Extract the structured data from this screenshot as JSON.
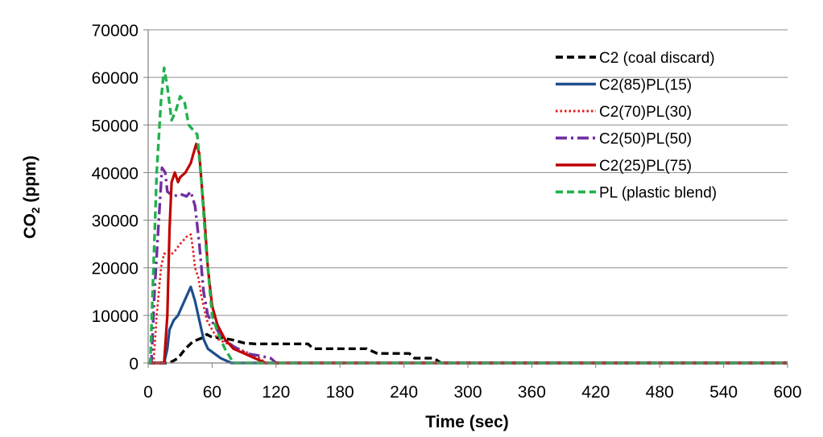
{
  "chart_data": {
    "type": "line",
    "title": "",
    "xlabel": "Time (sec)",
    "ylabel_main": "CO",
    "ylabel_sub": "2",
    "ylabel_unit": " (ppm)",
    "xlim": [
      0,
      600
    ],
    "ylim": [
      0,
      70000
    ],
    "x_ticks": [
      "0",
      "60",
      "120",
      "180",
      "240",
      "300",
      "360",
      "420",
      "480",
      "540",
      "600"
    ],
    "y_ticks": [
      "0",
      "10000",
      "20000",
      "30000",
      "40000",
      "50000",
      "60000",
      "70000"
    ],
    "grid": "horizontal",
    "legend_position": "top-right",
    "series": [
      {
        "name": "C2  (coal discard)",
        "color": "#000000",
        "dash": "dashed",
        "points": [
          [
            0,
            0
          ],
          [
            20,
            0
          ],
          [
            28,
            1000
          ],
          [
            35,
            3000
          ],
          [
            42,
            4500
          ],
          [
            50,
            5200
          ],
          [
            55,
            6000
          ],
          [
            60,
            5400
          ],
          [
            70,
            5200
          ],
          [
            80,
            4800
          ],
          [
            90,
            4200
          ],
          [
            100,
            4000
          ],
          [
            115,
            4000
          ],
          [
            130,
            4000
          ],
          [
            150,
            4000
          ],
          [
            155,
            3000
          ],
          [
            180,
            3000
          ],
          [
            205,
            3000
          ],
          [
            215,
            2000
          ],
          [
            230,
            2000
          ],
          [
            245,
            2000
          ],
          [
            250,
            1000
          ],
          [
            268,
            1000
          ],
          [
            275,
            0
          ],
          [
            600,
            0
          ]
        ]
      },
      {
        "name": "C2(85)PL(15)",
        "color": "#1f4e8c",
        "dash": "solid",
        "points": [
          [
            0,
            0
          ],
          [
            15,
            0
          ],
          [
            18,
            3000
          ],
          [
            20,
            7000
          ],
          [
            24,
            9000
          ],
          [
            28,
            10000
          ],
          [
            32,
            12000
          ],
          [
            36,
            14000
          ],
          [
            40,
            16000
          ],
          [
            44,
            13000
          ],
          [
            48,
            9000
          ],
          [
            52,
            5000
          ],
          [
            56,
            3000
          ],
          [
            62,
            2000
          ],
          [
            68,
            1000
          ],
          [
            78,
            0
          ],
          [
            600,
            0
          ]
        ]
      },
      {
        "name": "C2(70)PL(30)",
        "color": "#e31a1c",
        "dash": "dotted",
        "points": [
          [
            0,
            0
          ],
          [
            5,
            0
          ],
          [
            8,
            10000
          ],
          [
            12,
            20000
          ],
          [
            15,
            23000
          ],
          [
            20,
            22500
          ],
          [
            25,
            23500
          ],
          [
            30,
            25000
          ],
          [
            36,
            26500
          ],
          [
            40,
            27000
          ],
          [
            42,
            24000
          ],
          [
            44,
            20000
          ],
          [
            47,
            18000
          ],
          [
            50,
            14000
          ],
          [
            55,
            9000
          ],
          [
            60,
            7000
          ],
          [
            65,
            5000
          ],
          [
            75,
            4000
          ],
          [
            85,
            3000
          ],
          [
            95,
            2000
          ],
          [
            105,
            1000
          ],
          [
            110,
            0
          ],
          [
            600,
            0
          ]
        ]
      },
      {
        "name": "C2(50)PL(50)",
        "color": "#7030a0",
        "dash": "dashdot",
        "points": [
          [
            0,
            0
          ],
          [
            3,
            0
          ],
          [
            6,
            15000
          ],
          [
            10,
            30000
          ],
          [
            13,
            41000
          ],
          [
            16,
            40000
          ],
          [
            18,
            36000
          ],
          [
            24,
            35000
          ],
          [
            30,
            35500
          ],
          [
            36,
            35000
          ],
          [
            40,
            36000
          ],
          [
            44,
            33000
          ],
          [
            48,
            25000
          ],
          [
            52,
            15000
          ],
          [
            56,
            10000
          ],
          [
            62,
            8000
          ],
          [
            70,
            5000
          ],
          [
            80,
            3500
          ],
          [
            92,
            2000
          ],
          [
            105,
            1500
          ],
          [
            115,
            1000
          ],
          [
            120,
            0
          ],
          [
            600,
            0
          ]
        ]
      },
      {
        "name": "C2(25)PL(75)",
        "color": "#c00000",
        "dash": "solid",
        "points": [
          [
            0,
            0
          ],
          [
            15,
            0
          ],
          [
            18,
            10000
          ],
          [
            20,
            28000
          ],
          [
            22,
            38000
          ],
          [
            25,
            40000
          ],
          [
            28,
            38000
          ],
          [
            30,
            39000
          ],
          [
            35,
            40000
          ],
          [
            40,
            42000
          ],
          [
            45,
            46000
          ],
          [
            48,
            44000
          ],
          [
            50,
            38000
          ],
          [
            53,
            30000
          ],
          [
            56,
            20000
          ],
          [
            60,
            12000
          ],
          [
            65,
            8000
          ],
          [
            72,
            5000
          ],
          [
            80,
            3000
          ],
          [
            90,
            2000
          ],
          [
            100,
            1000
          ],
          [
            110,
            0
          ],
          [
            600,
            0
          ]
        ]
      },
      {
        "name": "PL (plastic blend)",
        "color": "#22b14c",
        "dash": "dashed",
        "points": [
          [
            0,
            0
          ],
          [
            2,
            0
          ],
          [
            5,
            20000
          ],
          [
            8,
            40000
          ],
          [
            12,
            55000
          ],
          [
            15,
            62000
          ],
          [
            18,
            58000
          ],
          [
            22,
            51000
          ],
          [
            26,
            53000
          ],
          [
            30,
            56000
          ],
          [
            34,
            55000
          ],
          [
            38,
            50000
          ],
          [
            42,
            49000
          ],
          [
            46,
            48000
          ],
          [
            50,
            38000
          ],
          [
            54,
            25000
          ],
          [
            60,
            10000
          ],
          [
            66,
            6000
          ],
          [
            72,
            3000
          ],
          [
            80,
            0
          ],
          [
            600,
            0
          ]
        ]
      }
    ]
  }
}
